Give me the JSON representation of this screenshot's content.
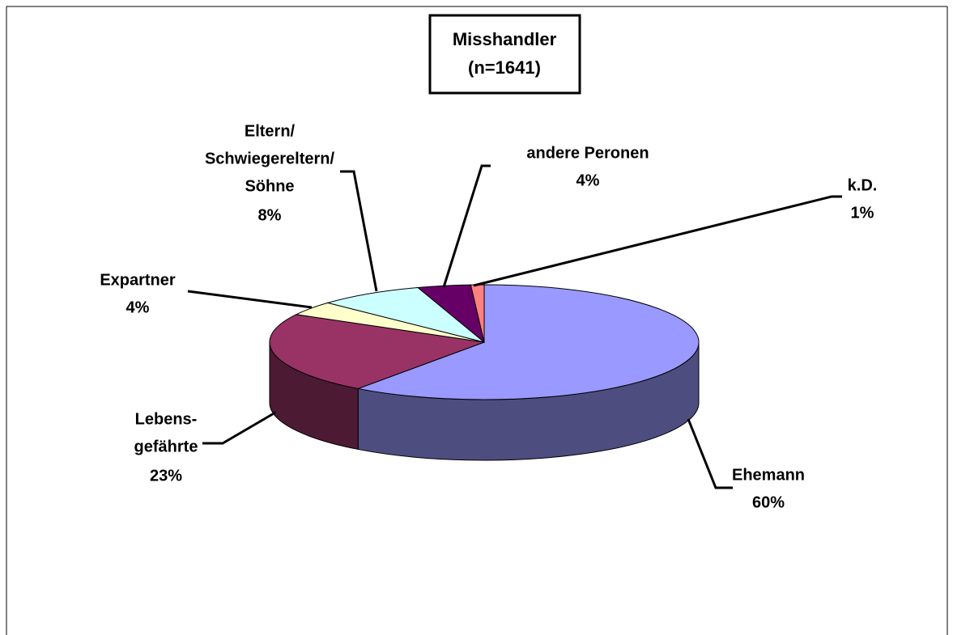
{
  "chart_data": {
    "type": "pie3d",
    "title": "Misshandler",
    "subtitle": "(n=1641)",
    "categories": [
      [
        "Ehemann"
      ],
      [
        "Lebens-",
        "gefährte"
      ],
      [
        "Expartner"
      ],
      [
        "Eltern/",
        "Schwiegereltern/",
        "Söhne"
      ],
      [
        "andere Peronen"
      ],
      [
        "k.D."
      ]
    ],
    "values": [
      60,
      23,
      4,
      8,
      4,
      1
    ],
    "value_labels": [
      "60%",
      "23%",
      "4%",
      "8%",
      "4%",
      "1%"
    ],
    "colors": [
      "#9999ff",
      "#993366",
      "#ffffcc",
      "#ccffff",
      "#660066",
      "#ff8080"
    ]
  }
}
